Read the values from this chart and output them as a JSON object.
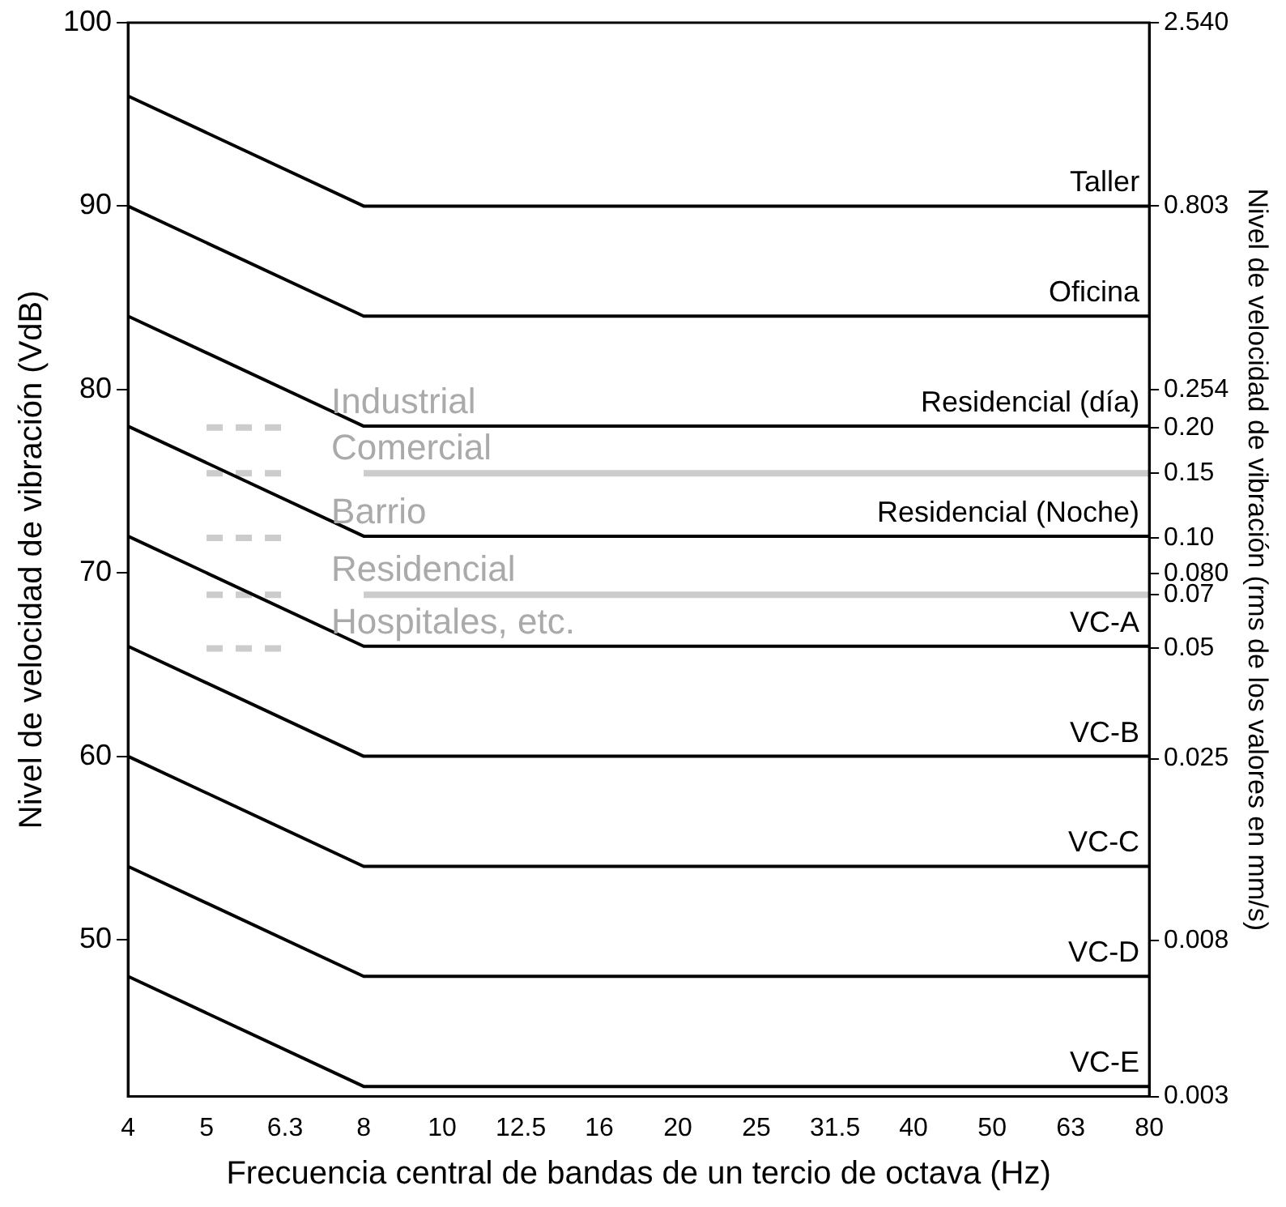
{
  "chart_data": {
    "type": "line",
    "xlabel": "Frecuencia central de bandas de un tercio de octava (Hz)",
    "ylabel": "Nivel de velocidad de vibración (VdB)",
    "y2label": "Nivel de velocidad de vibración (rms de los valores en mm/s)",
    "categories": [
      "4",
      "5",
      "6.3",
      "8",
      "10",
      "12.5",
      "16",
      "20",
      "25",
      "31.5",
      "40",
      "50",
      "63",
      "80"
    ],
    "series": [
      {
        "name": "Taller",
        "color": "#000000",
        "values": [
          96,
          null,
          null,
          90,
          null,
          null,
          null,
          null,
          null,
          null,
          null,
          null,
          null,
          90
        ]
      },
      {
        "name": "Oficina",
        "color": "#000000",
        "values": [
          90,
          null,
          null,
          84,
          null,
          null,
          null,
          null,
          null,
          null,
          null,
          null,
          null,
          84
        ]
      },
      {
        "name": "Residencial (día)",
        "color": "#000000",
        "values": [
          84,
          null,
          null,
          78,
          null,
          null,
          null,
          null,
          null,
          null,
          null,
          null,
          null,
          78
        ]
      },
      {
        "name": "Residencial (Noche)",
        "color": "#000000",
        "values": [
          78,
          null,
          null,
          72,
          null,
          null,
          null,
          null,
          null,
          null,
          null,
          null,
          null,
          72
        ]
      },
      {
        "name": "VC-A",
        "color": "#000000",
        "values": [
          72,
          null,
          null,
          66,
          null,
          null,
          null,
          null,
          null,
          null,
          null,
          null,
          null,
          66
        ]
      },
      {
        "name": "VC-B",
        "color": "#000000",
        "values": [
          66,
          null,
          null,
          60,
          null,
          null,
          null,
          null,
          null,
          null,
          null,
          null,
          null,
          60
        ]
      },
      {
        "name": "VC-C",
        "color": "#000000",
        "values": [
          60,
          null,
          null,
          54,
          null,
          null,
          null,
          null,
          null,
          null,
          null,
          null,
          null,
          54
        ]
      },
      {
        "name": "VC-D",
        "color": "#000000",
        "values": [
          54,
          null,
          null,
          48,
          null,
          null,
          null,
          null,
          null,
          null,
          null,
          null,
          null,
          48
        ]
      },
      {
        "name": "VC-E",
        "color": "#000000",
        "values": [
          48,
          null,
          null,
          42,
          null,
          null,
          null,
          null,
          null,
          null,
          null,
          null,
          null,
          42
        ]
      },
      {
        "color": "#cccccc",
        "axis": "y2",
        "line_style": "dashed",
        "values": [
          null,
          0.2,
          0.2,
          null,
          null,
          null,
          null,
          null,
          null,
          null,
          null,
          null,
          null,
          null
        ]
      },
      {
        "color": "#cccccc",
        "axis": "y2",
        "line_style": "dashed",
        "values": [
          null,
          0.15,
          0.15,
          null,
          null,
          null,
          null,
          null,
          null,
          null,
          null,
          null,
          null,
          null
        ]
      },
      {
        "color": "#cccccc",
        "axis": "y2",
        "line_style": "dashed",
        "values": [
          null,
          0.1,
          0.1,
          null,
          null,
          null,
          null,
          null,
          null,
          null,
          null,
          null,
          null,
          null
        ]
      },
      {
        "color": "#cccccc",
        "axis": "y2",
        "line_style": "dashed",
        "values": [
          null,
          0.07,
          0.07,
          null,
          null,
          null,
          null,
          null,
          null,
          null,
          null,
          null,
          null,
          null
        ]
      },
      {
        "color": "#cccccc",
        "axis": "y2",
        "line_style": "dashed",
        "values": [
          null,
          0.05,
          0.05,
          null,
          null,
          null,
          null,
          null,
          null,
          null,
          null,
          null,
          null,
          null
        ]
      },
      {
        "color": "#cccccc",
        "axis": "y2",
        "line_style": "solid",
        "values": [
          null,
          null,
          null,
          0.15,
          null,
          null,
          null,
          null,
          null,
          null,
          null,
          null,
          null,
          0.15
        ]
      },
      {
        "color": "#cccccc",
        "axis": "y2",
        "line_style": "solid",
        "values": [
          null,
          null,
          null,
          0.07,
          null,
          null,
          null,
          null,
          null,
          null,
          null,
          null,
          null,
          0.07
        ]
      }
    ],
    "ylim": [
      41.45,
      100
    ],
    "yticks": [
      50,
      60,
      70,
      80,
      90,
      100
    ],
    "y2lim": [
      0.003,
      2.54
    ],
    "y2ticks": [
      {
        "value": 2.54,
        "label": "2.540"
      },
      {
        "value": 0.803,
        "label": "0.803"
      },
      {
        "value": 0.254,
        "label": "0.254"
      },
      {
        "value": 0.2,
        "label": "0.20"
      },
      {
        "value": 0.15,
        "label": "0.15"
      },
      {
        "value": 0.1,
        "label": "0.10"
      },
      {
        "value": 0.08,
        "label": "0.080"
      },
      {
        "value": 0.07,
        "label": "0.07"
      },
      {
        "value": 0.05,
        "label": "0.05"
      },
      {
        "value": 0.025,
        "label": "0.025"
      },
      {
        "value": 0.008,
        "label": "0.008"
      },
      {
        "value": 0.003,
        "label": "0.003"
      }
    ],
    "log": "y2",
    "grid": false,
    "legend": "right",
    "marker": "none",
    "annotations": [
      {
        "text": "Industrial",
        "x": "8",
        "y": 77.9
      },
      {
        "text": "Comercial",
        "x": "8",
        "y": 75.4
      },
      {
        "text": "Barrio",
        "x": "8",
        "y": 71.9
      },
      {
        "text": "Residencial",
        "x": "8",
        "y": 68.8
      },
      {
        "text": "Hospitales, etc.",
        "x": "8",
        "y": 65.9
      }
    ]
  }
}
